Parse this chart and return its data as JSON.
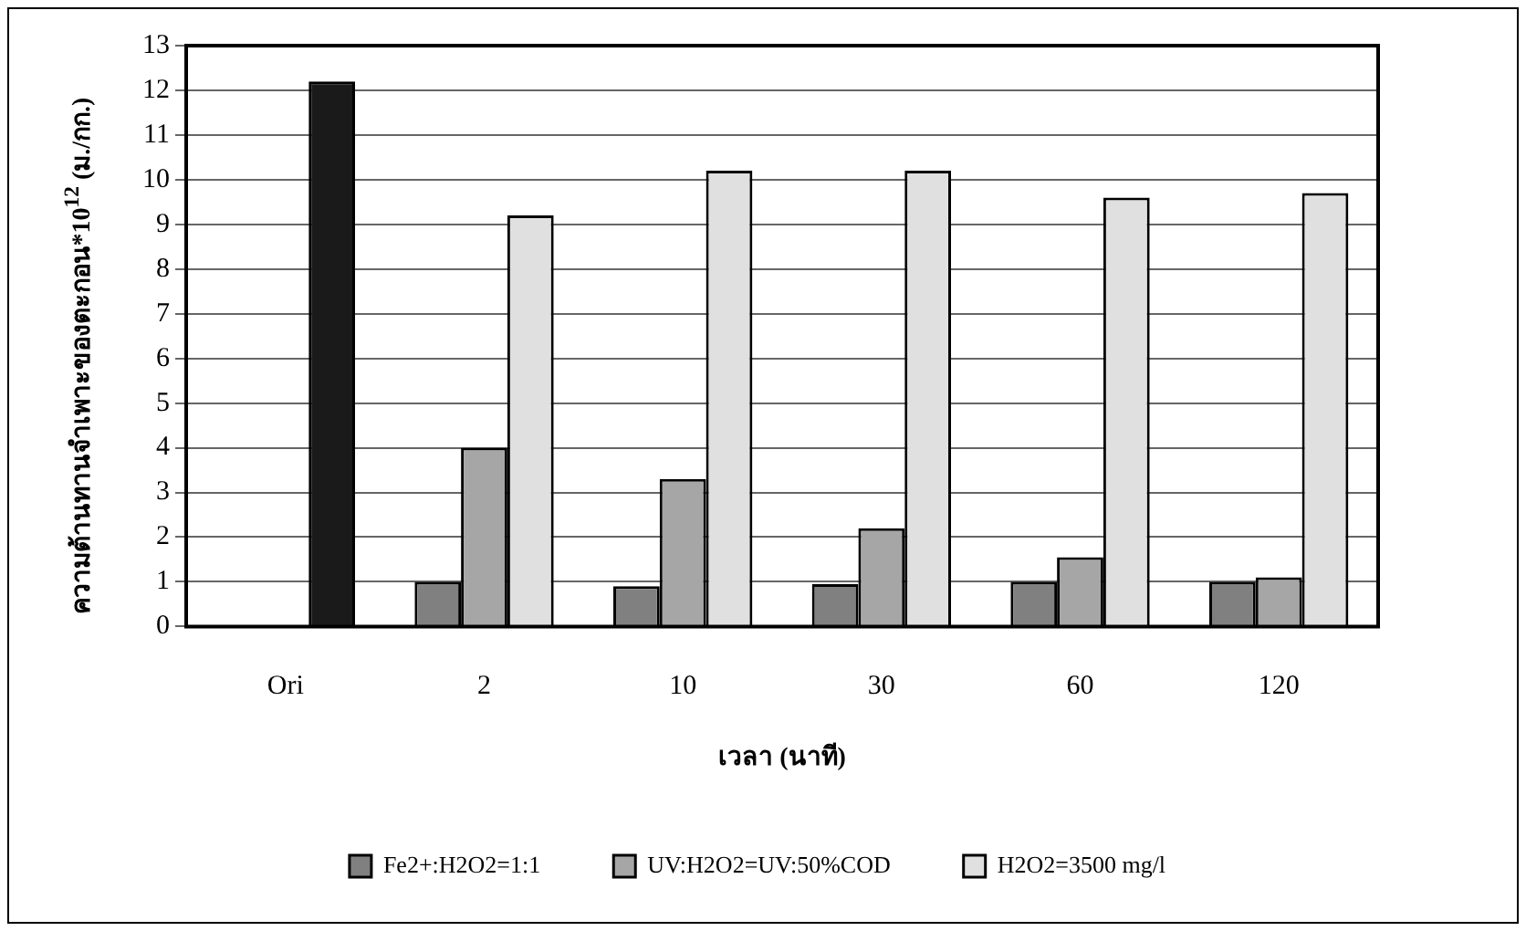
{
  "chart_data": {
    "type": "bar",
    "xlabel": "เวลา (นาที)",
    "ylabel": "ความต้านทานจำเพาะของตะกอน*10$^{12}$ (ม./กก.)",
    "categories": [
      "Ori",
      "2",
      "10",
      "30",
      "60",
      "120"
    ],
    "series": [
      {
        "name": "Fe2+:H2O2=1:1",
        "color": "#808080",
        "values": [
          null,
          1.0,
          0.9,
          0.95,
          1.0,
          1.0
        ]
      },
      {
        "name": "UV:H2O2=UV:50%COD",
        "color": "#a6a6a6",
        "values": [
          null,
          4.0,
          3.3,
          2.2,
          1.55,
          1.1
        ]
      },
      {
        "name": "H2O2=3500 mg/l",
        "color": "#e0e0e0",
        "colors": [
          "#1a1a1a",
          "#e0e0e0",
          "#e0e0e0",
          "#e0e0e0",
          "#e0e0e0",
          "#e0e0e0"
        ],
        "values": [
          12.2,
          9.2,
          10.2,
          10.2,
          9.6,
          9.7
        ]
      }
    ],
    "ylim": [
      0,
      13
    ],
    "yticks": [
      0,
      1,
      2,
      3,
      4,
      5,
      6,
      7,
      8,
      9,
      10,
      11,
      12,
      13
    ],
    "grid": "y",
    "legend": "bottom"
  }
}
